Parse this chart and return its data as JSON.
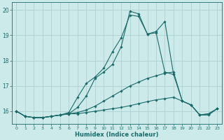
{
  "xlabel": "Humidex (Indice chaleur)",
  "ylabel": "",
  "bg_color": "#cdeaea",
  "grid_color": "#b8d8d8",
  "line_color": "#1a6b6b",
  "xlim": [
    -0.5,
    23.5
  ],
  "ylim": [
    15.5,
    20.3
  ],
  "xticks": [
    0,
    1,
    2,
    3,
    4,
    5,
    6,
    7,
    8,
    9,
    10,
    11,
    12,
    13,
    14,
    15,
    16,
    17,
    18,
    19,
    20,
    21,
    22,
    23
  ],
  "yticks": [
    16,
    17,
    18,
    19,
    20
  ],
  "lines": [
    {
      "x": [
        0,
        1,
        2,
        3,
        4,
        5,
        6,
        7,
        8,
        9,
        10,
        11,
        12,
        13,
        14,
        15,
        16,
        17,
        18,
        19,
        20,
        21,
        22,
        23
      ],
      "y": [
        16.0,
        15.8,
        15.75,
        15.75,
        15.8,
        15.85,
        15.9,
        16.15,
        16.6,
        17.3,
        17.55,
        17.85,
        18.55,
        19.95,
        19.85,
        19.05,
        19.15,
        19.55,
        17.45,
        null,
        null,
        null,
        null,
        null
      ]
    },
    {
      "x": [
        0,
        1,
        2,
        3,
        4,
        5,
        6,
        7,
        8,
        9,
        10,
        11,
        12,
        13,
        14,
        15,
        16,
        17,
        18,
        19,
        20,
        21,
        22,
        23
      ],
      "y": [
        16.0,
        15.8,
        15.75,
        15.75,
        15.8,
        15.85,
        15.95,
        16.55,
        17.1,
        17.35,
        17.7,
        18.35,
        18.9,
        19.8,
        19.75,
        19.05,
        19.1,
        17.55,
        17.45,
        16.4,
        16.25,
        15.85,
        15.85,
        16.1
      ]
    },
    {
      "x": [
        0,
        1,
        2,
        3,
        4,
        5,
        6,
        7,
        8,
        9,
        10,
        11,
        12,
        13,
        14,
        15,
        16,
        17,
        18,
        19,
        20,
        21,
        22,
        23
      ],
      "y": [
        16.0,
        15.8,
        15.75,
        15.75,
        15.8,
        15.85,
        15.9,
        15.95,
        16.05,
        16.2,
        16.4,
        16.6,
        16.8,
        17.0,
        17.15,
        17.3,
        17.4,
        17.5,
        17.55,
        16.4,
        16.25,
        15.85,
        15.9,
        16.1
      ]
    },
    {
      "x": [
        0,
        1,
        2,
        3,
        4,
        5,
        6,
        7,
        8,
        9,
        10,
        11,
        12,
        13,
        14,
        15,
        16,
        17,
        18,
        19,
        20,
        21,
        22,
        23
      ],
      "y": [
        16.0,
        15.8,
        15.75,
        15.75,
        15.8,
        15.85,
        15.9,
        15.9,
        15.95,
        16.0,
        16.05,
        16.1,
        16.15,
        16.22,
        16.3,
        16.38,
        16.45,
        16.5,
        16.55,
        16.4,
        16.25,
        15.85,
        15.9,
        16.1
      ]
    }
  ]
}
